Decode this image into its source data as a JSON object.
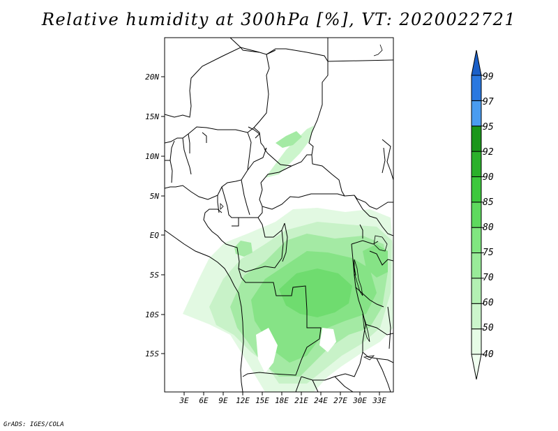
{
  "title": "Relative humidity at 300hPa [%], VT: 2020022721",
  "credit": "GrADS: IGES/COLA",
  "map": {
    "lat_labels": [
      "20N",
      "15N",
      "10N",
      "5N",
      "EQ",
      "5S",
      "10S",
      "15S"
    ],
    "lon_labels": [
      "3E",
      "6E",
      "9E",
      "12E",
      "15E",
      "18E",
      "21E",
      "24E",
      "27E",
      "30E",
      "33E"
    ]
  },
  "colorbar": {
    "levels": [
      "40",
      "50",
      "60",
      "70",
      "75",
      "80",
      "85",
      "90",
      "92",
      "95",
      "97",
      "99"
    ],
    "colors": [
      "#f0fff0",
      "#e6fce6",
      "#ccf5cc",
      "#b3f0b3",
      "#99eb99",
      "#80e680",
      "#5ed95e",
      "#3cc83c",
      "#2bb02b",
      "#1a961a",
      "#4a9cf0",
      "#2a78e0",
      "#1a5fc8"
    ]
  }
}
